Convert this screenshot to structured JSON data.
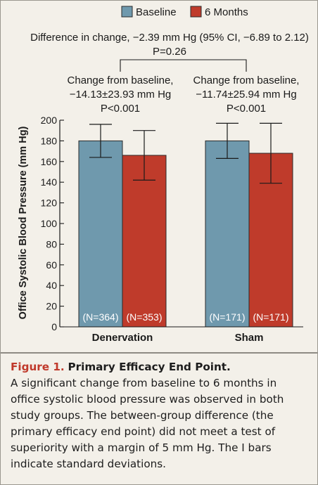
{
  "chart_data": {
    "type": "bar",
    "categories": [
      "Denervation",
      "Sham"
    ],
    "ylabel": "Office Systolic Blood Pressure (mm Hg)",
    "ylim": [
      0,
      200
    ],
    "yticks": [
      "0",
      "20",
      "40",
      "60",
      "80",
      "100",
      "120",
      "140",
      "160",
      "180",
      "200"
    ],
    "legend": {
      "position": "top",
      "items": [
        "Baseline",
        "6 Months"
      ]
    },
    "series": [
      {
        "name": "Baseline",
        "color": "#6f99ad",
        "values": [
          180,
          180
        ],
        "sd": [
          16,
          17
        ],
        "n_labels": [
          "(N=364)",
          "(N=171)"
        ]
      },
      {
        "name": "6 Months",
        "color": "#bf3b2b",
        "values": [
          166,
          168
        ],
        "sd": [
          24,
          29
        ],
        "n_labels": [
          "(N=353)",
          "(N=171)"
        ]
      }
    ],
    "annotations": {
      "difference_line1": "Difference in change, −2.39  mm Hg (95% CI, −6.89 to 2.12)",
      "difference_line2": "P=0.26",
      "change_left": [
        "Change from baseline,",
        "−14.13±23.93 mm Hg",
        "P<0.001"
      ],
      "change_right": [
        "Change from baseline,",
        "−11.74±25.94 mm Hg",
        "P<0.001"
      ]
    }
  },
  "caption": {
    "label": "Figure 1.",
    "title": "Primary Efficacy End Point.",
    "body": "A significant change from baseline to 6 months in office systolic blood pressure was observed in both study groups. The between-group difference (the primary efficacy end point) did not meet a test of superiority with a margin of 5 mm Hg. The I bars indicate standard deviations."
  }
}
